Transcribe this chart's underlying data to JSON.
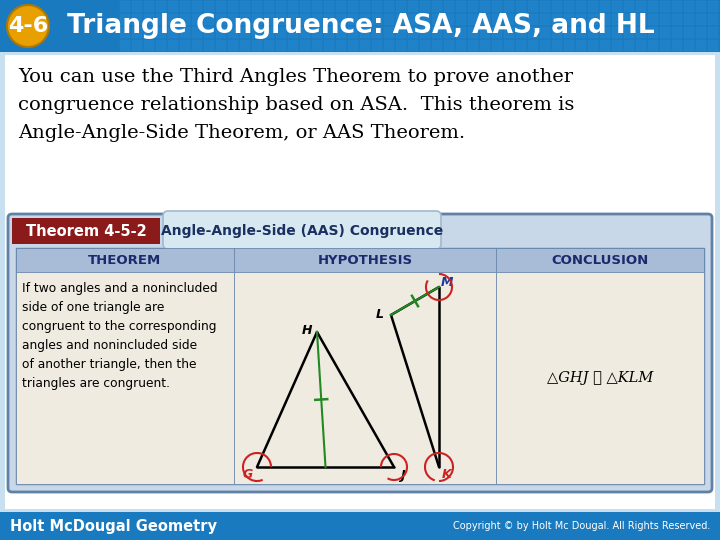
{
  "title_number": "4-6",
  "title_text": " Triangle Congruence: ASA, AAS, and HL",
  "title_bg_color": "#1a7abf",
  "title_number_bg": "#e8a000",
  "body_bg": "#c8dff0",
  "white_body": "#ffffff",
  "paragraph_text_line1": "You can use the Third Angles Theorem to prove another",
  "paragraph_text_line2": "congruence relationship based on ASA.  This theorem is",
  "paragraph_text_line3": "Angle-Angle-Side Theorem, or AAS Theorem.",
  "theorem_label": "Theorem 4-5-2",
  "theorem_label_bg": "#8b1a1a",
  "theorem_title": "Angle-Angle-Side (AAS) Congruence",
  "theorem_title_bg": "#d8e8f0",
  "theorem_title_border": "#a0b8d0",
  "table_header_bg": "#a8bcd8",
  "table_header_text": "#1a2a6a",
  "table_body_bg": "#f0ebe0",
  "outer_box_bg": "#c8d8e8",
  "outer_box_border": "#6080a8",
  "theorem_text": "If two angles and a nonincluded\nside of one triangle are\ncongruent to the corresponding\nangles and nonincluded side\nof another triangle, then the\ntriangles are congruent.",
  "conclusion_text": "△GHJ ≅ △KLM",
  "footer_left": "Holt McDougal Geometry",
  "footer_right": "Copyright © by Holt Mc Dougal. All Rights Reserved.",
  "footer_bg": "#1a7abf",
  "footer_text_color": "#ffffff",
  "green_color": "#228822",
  "red_color": "#cc2222",
  "blue_label_color": "#1a3a9a"
}
